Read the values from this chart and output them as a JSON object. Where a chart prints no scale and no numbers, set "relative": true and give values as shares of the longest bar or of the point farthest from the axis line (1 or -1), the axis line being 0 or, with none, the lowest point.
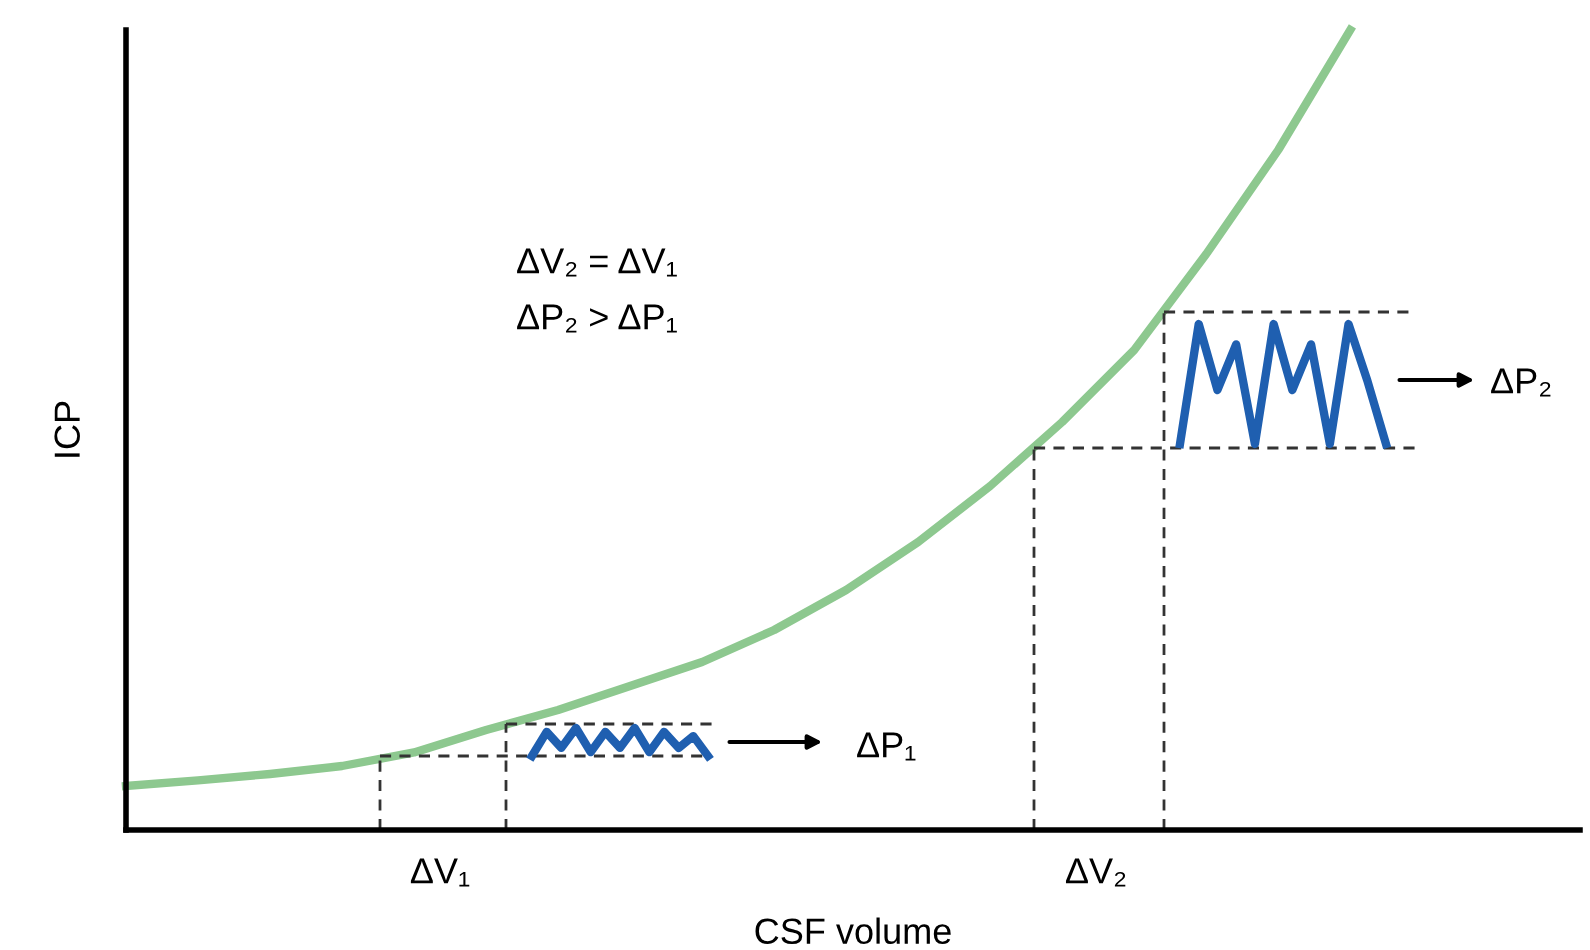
{
  "chart_data": [
    {
      "type": "line",
      "relative": true,
      "xlabel": "CSF volume",
      "ylabel": "ICP",
      "categories": [
        null,
        null,
        null,
        null,
        null,
        null,
        null,
        null,
        null,
        null,
        null,
        null,
        null,
        null,
        null,
        null,
        null,
        null,
        null,
        null,
        null
      ],
      "series": [
        {
          "color": "#8dc88f",
          "values": [
            0.055,
            0.062,
            0.07,
            0.08,
            0.097,
            0.125,
            0.15,
            0.18,
            0.21,
            0.25,
            0.3,
            0.36,
            0.43,
            0.51,
            0.6,
            0.72,
            0.85,
            1.0,
            null,
            null,
            null
          ]
        }
      ],
      "annotations": [
        "ΔV₂ = ΔV₁",
        "ΔP₂ > ΔP₁",
        "ΔV₁",
        "ΔV₂",
        "ΔP₁",
        "ΔP₂"
      ],
      "marker": "none",
      "line_style": "solid"
    },
    {
      "type": "line",
      "relative": true,
      "categories": [
        null,
        null,
        null,
        null,
        null,
        null,
        null,
        null,
        null,
        null,
        null,
        null,
        null
      ],
      "series": [
        {
          "color": "#1f5fb0",
          "values": [
            0,
            0.86,
            0.29,
            1,
            0.14,
            0.86,
            0.29,
            1,
            0.14,
            0.86,
            0.29,
            0.71,
            0
          ]
        }
      ],
      "marker": "none",
      "line_style": "solid"
    },
    {
      "type": "line",
      "relative": true,
      "categories": [
        null,
        null,
        null,
        null,
        null,
        null,
        null,
        null,
        null,
        null,
        null,
        null
      ],
      "series": [
        {
          "color": "#1f5fb0",
          "values": [
            0,
            1,
            0.45,
            0.83,
            0,
            1,
            0.45,
            0.83,
            0,
            1,
            0.53,
            0
          ]
        }
      ],
      "marker": "none",
      "line_style": "solid"
    }
  ]
}
